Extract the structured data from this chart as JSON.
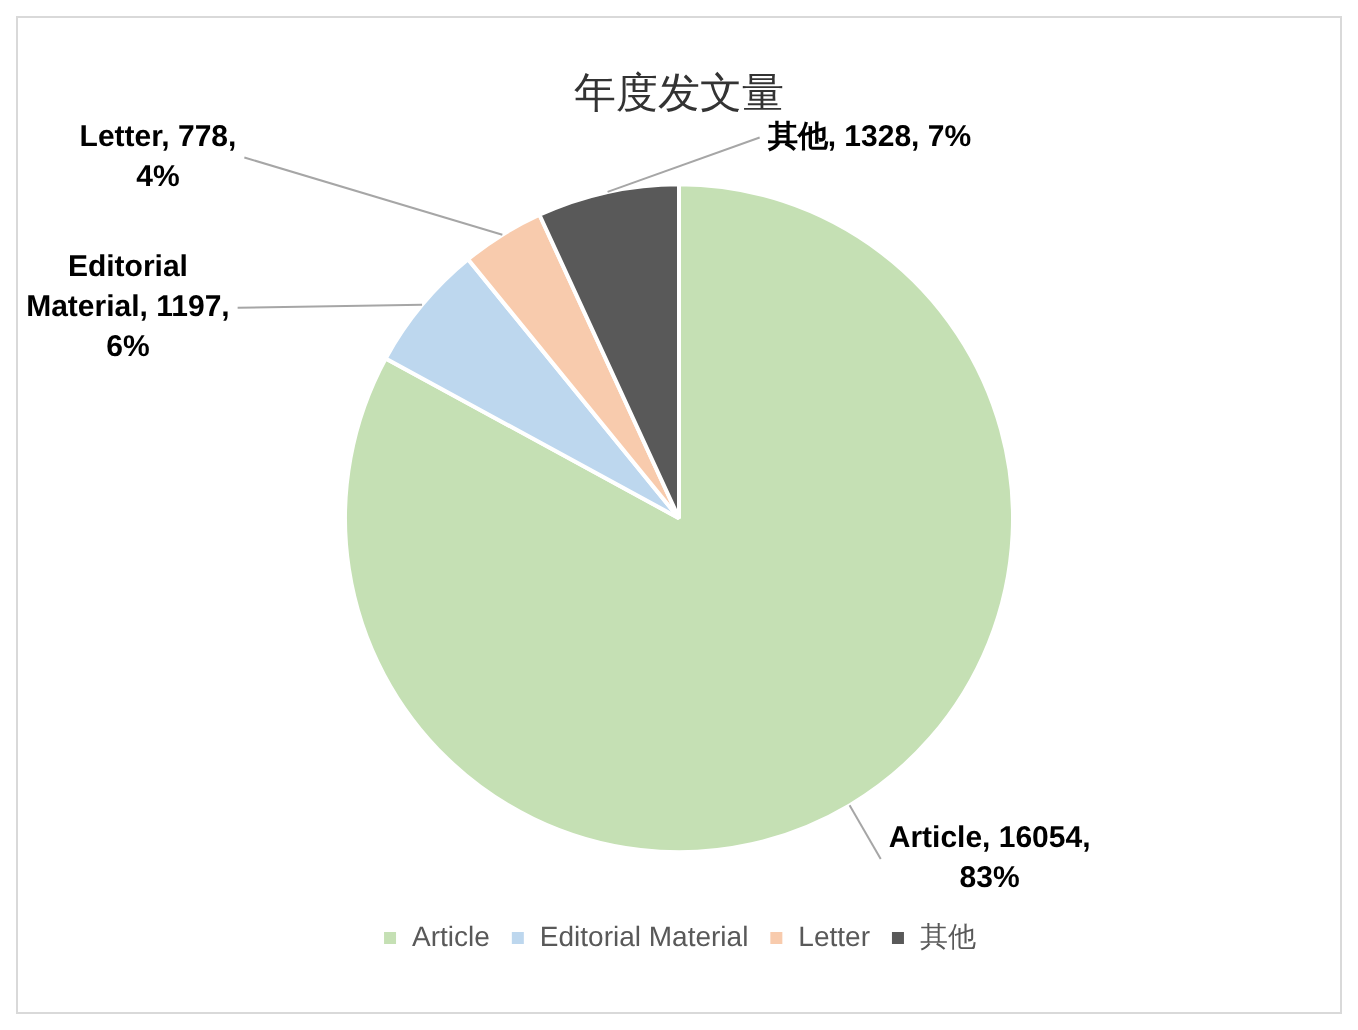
{
  "chart_data": {
    "type": "pie",
    "title": "年度发文量",
    "categories": [
      "Article",
      "Editorial Material",
      "Letter",
      "其他"
    ],
    "values": [
      16054,
      1197,
      778,
      1328
    ],
    "colors": [
      "#c5e0b4",
      "#bdd7ee",
      "#f8cbad",
      "#595959"
    ],
    "value_labels": [
      "Article, 16054, 83%",
      "Editorial Material, 1197, 6%",
      "Letter, 778, 4%",
      "其他, 1328, 7%"
    ],
    "legend": "bottom"
  }
}
